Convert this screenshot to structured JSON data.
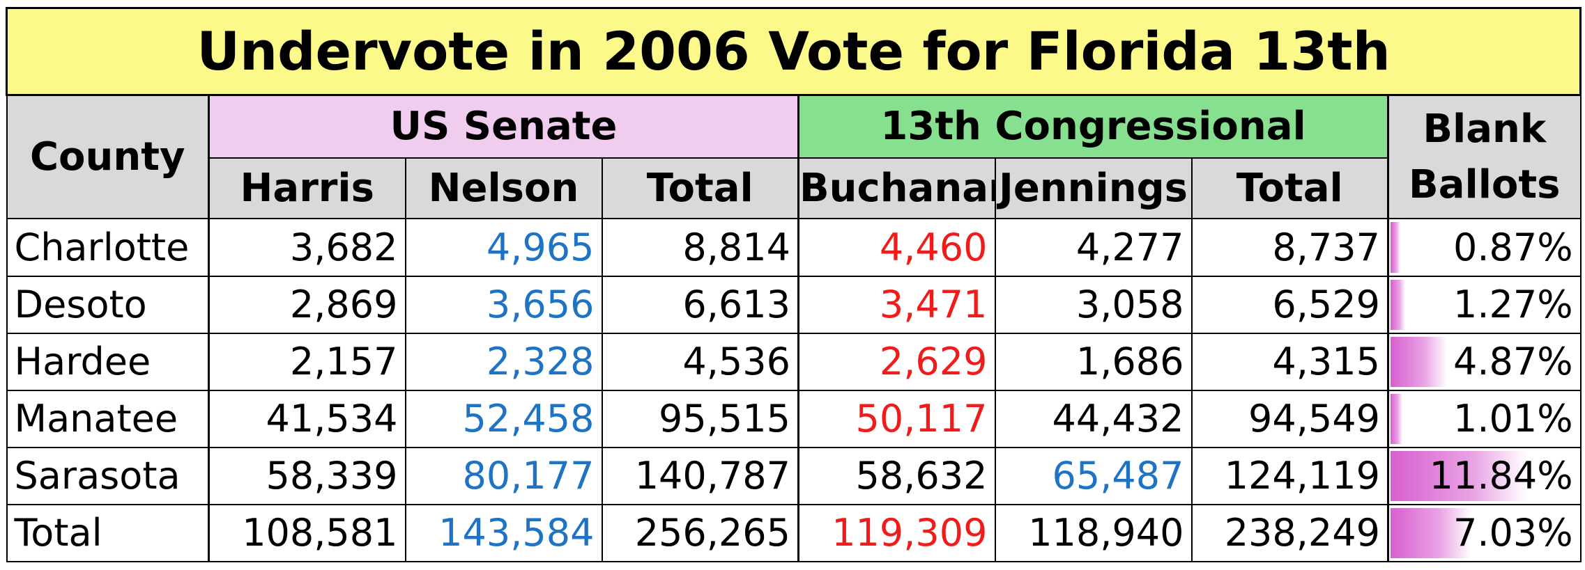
{
  "title": "Undervote in 2006 Vote for Florida 13th",
  "headers": {
    "county": "County",
    "senate_group": "US Senate",
    "congress_group": "13th Congressional",
    "blank_line1": "Blank",
    "blank_line2": "Ballots",
    "harris": "Harris",
    "nelson": "Nelson",
    "senate_total": "Total",
    "buchanan": "Buchanan",
    "jennings": "Jennings",
    "congress_total": "Total"
  },
  "colors": {
    "title_bg": "#fbf98a",
    "header_bg": "#d9d9d9",
    "senate_bg": "#f0cdee",
    "congress_bg": "#86e08f",
    "blue": "#1f73c4",
    "red": "#f01c1c",
    "bar": "#d85fd0"
  },
  "bar_max_percent": 11.84,
  "rows": [
    {
      "county": "Charlotte",
      "harris": "3,682",
      "nelson": "4,965",
      "senate_total": "8,814",
      "buchanan": "4,460",
      "jennings": "4,277",
      "congress_total": "8,737",
      "blank": "0.87%",
      "blank_value": 0.87,
      "nelson_color": "blue",
      "buchanan_color": "red",
      "jennings_color": "black"
    },
    {
      "county": "Desoto",
      "harris": "2,869",
      "nelson": "3,656",
      "senate_total": "6,613",
      "buchanan": "3,471",
      "jennings": "3,058",
      "congress_total": "6,529",
      "blank": "1.27%",
      "blank_value": 1.27,
      "nelson_color": "blue",
      "buchanan_color": "red",
      "jennings_color": "black"
    },
    {
      "county": "Hardee",
      "harris": "2,157",
      "nelson": "2,328",
      "senate_total": "4,536",
      "buchanan": "2,629",
      "jennings": "1,686",
      "congress_total": "4,315",
      "blank": "4.87%",
      "blank_value": 4.87,
      "nelson_color": "blue",
      "buchanan_color": "red",
      "jennings_color": "black"
    },
    {
      "county": "Manatee",
      "harris": "41,534",
      "nelson": "52,458",
      "senate_total": "95,515",
      "buchanan": "50,117",
      "jennings": "44,432",
      "congress_total": "94,549",
      "blank": "1.01%",
      "blank_value": 1.01,
      "nelson_color": "blue",
      "buchanan_color": "red",
      "jennings_color": "black"
    },
    {
      "county": "Sarasota",
      "harris": "58,339",
      "nelson": "80,177",
      "senate_total": "140,787",
      "buchanan": "58,632",
      "jennings": "65,487",
      "congress_total": "124,119",
      "blank": "11.84%",
      "blank_value": 11.84,
      "nelson_color": "blue",
      "buchanan_color": "black",
      "jennings_color": "blue"
    },
    {
      "county": "Total",
      "harris": "108,581",
      "nelson": "143,584",
      "senate_total": "256,265",
      "buchanan": "119,309",
      "jennings": "118,940",
      "congress_total": "238,249",
      "blank": "7.03%",
      "blank_value": 7.03,
      "nelson_color": "blue",
      "buchanan_color": "red",
      "jennings_color": "black"
    }
  ]
}
